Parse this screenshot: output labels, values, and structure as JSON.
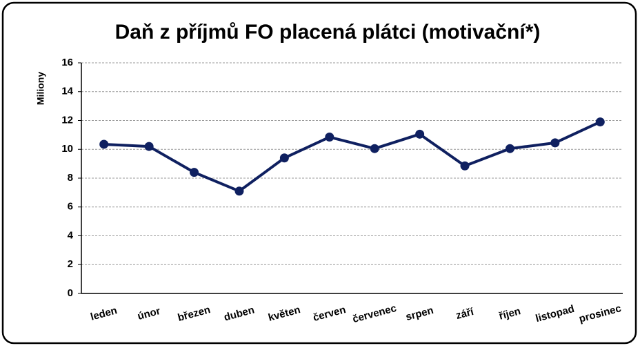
{
  "chart_data": {
    "type": "line",
    "title": "Daň z příjmů FO placená plátci (motivační*)",
    "y_label": "Miliony",
    "categories": [
      "leden",
      "únor",
      "březen",
      "duben",
      "květen",
      "červen",
      "červenec",
      "srpen",
      "září",
      "říjen",
      "listopad",
      "prosinec"
    ],
    "series": [
      {
        "name": "Daň z příjmů FO placená plátci",
        "color": "#0f2060",
        "values": [
          10.35,
          10.2,
          8.4,
          7.1,
          9.4,
          10.85,
          10.05,
          11.05,
          8.85,
          10.05,
          10.45,
          11.9
        ]
      }
    ],
    "ylim": [
      0,
      16
    ],
    "yticks": [
      0,
      2,
      4,
      6,
      8,
      10,
      12,
      14,
      16
    ],
    "grid": true
  }
}
